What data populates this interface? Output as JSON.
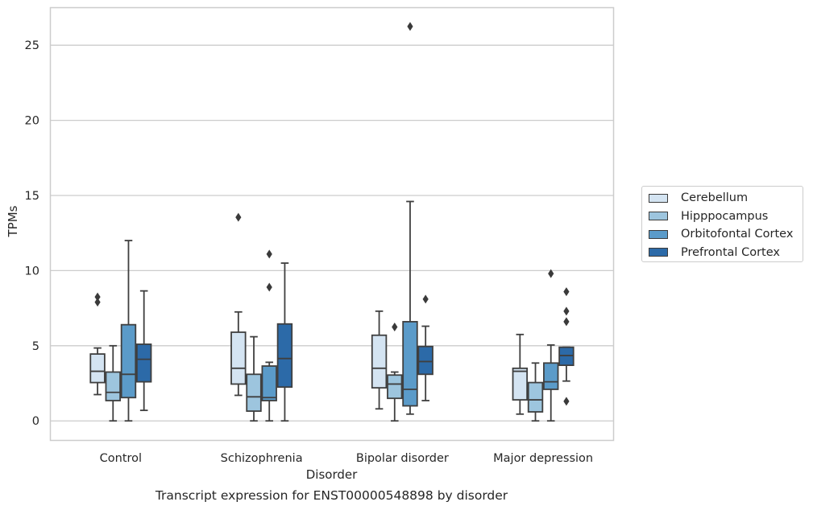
{
  "chart_data": {
    "type": "box",
    "xlabel": "Disorder",
    "ylabel": "TPMs",
    "caption": "Transcript expression for ENST00000548898 by disorder",
    "categories": [
      "Control",
      "Schizophrenia",
      "Bipolar disorder",
      "Major depression"
    ],
    "yticks": [
      0,
      5,
      10,
      15,
      20,
      25
    ],
    "ylim": [
      -1.3,
      27.5
    ],
    "grid": "horizontal",
    "legend_position": "right",
    "series": [
      {
        "name": "Cerebellum",
        "color": "#d4e4f2",
        "boxes": [
          {
            "whisker_low": 1.75,
            "q1": 2.55,
            "median": 3.3,
            "q3": 4.45,
            "whisker_high": 4.85,
            "outliers": [
              8.25,
              7.9
            ]
          },
          {
            "whisker_low": 1.7,
            "q1": 2.45,
            "median": 3.5,
            "q3": 5.9,
            "whisker_high": 7.25,
            "outliers": [
              13.55
            ]
          },
          {
            "whisker_low": 0.8,
            "q1": 2.2,
            "median": 3.5,
            "q3": 5.7,
            "whisker_high": 7.3,
            "outliers": []
          },
          {
            "whisker_low": 0.45,
            "q1": 1.4,
            "median": 3.3,
            "q3": 3.5,
            "whisker_high": 5.75,
            "outliers": []
          }
        ]
      },
      {
        "name": "Hipppocampus",
        "color": "#9dc5de",
        "boxes": [
          {
            "whisker_low": 0.0,
            "q1": 1.35,
            "median": 1.9,
            "q3": 3.25,
            "whisker_high": 5.0,
            "outliers": []
          },
          {
            "whisker_low": 0.0,
            "q1": 0.65,
            "median": 1.6,
            "q3": 3.1,
            "whisker_high": 5.6,
            "outliers": []
          },
          {
            "whisker_low": 0.0,
            "q1": 1.5,
            "median": 2.45,
            "q3": 3.05,
            "whisker_high": 3.25,
            "outliers": [
              6.25
            ]
          },
          {
            "whisker_low": 0.0,
            "q1": 0.6,
            "median": 1.4,
            "q3": 2.55,
            "whisker_high": 3.85,
            "outliers": []
          }
        ]
      },
      {
        "name": "Orbitofontal Cortex",
        "color": "#5b9bc9",
        "boxes": [
          {
            "whisker_low": 0.0,
            "q1": 1.55,
            "median": 3.1,
            "q3": 6.4,
            "whisker_high": 12.0,
            "outliers": []
          },
          {
            "whisker_low": 0.0,
            "q1": 1.35,
            "median": 1.55,
            "q3": 3.65,
            "whisker_high": 3.9,
            "outliers": [
              11.1,
              8.9
            ]
          },
          {
            "whisker_low": 0.45,
            "q1": 1.0,
            "median": 2.1,
            "q3": 6.6,
            "whisker_high": 14.6,
            "outliers": [
              26.25
            ]
          },
          {
            "whisker_low": 0.0,
            "q1": 2.1,
            "median": 2.6,
            "q3": 3.85,
            "whisker_high": 5.05,
            "outliers": [
              9.8
            ]
          }
        ]
      },
      {
        "name": "Prefrontal Cortex",
        "color": "#2c6aa8",
        "boxes": [
          {
            "whisker_low": 0.7,
            "q1": 2.6,
            "median": 4.1,
            "q3": 5.1,
            "whisker_high": 8.65,
            "outliers": []
          },
          {
            "whisker_low": 0.0,
            "q1": 2.25,
            "median": 4.15,
            "q3": 6.45,
            "whisker_high": 10.5,
            "outliers": []
          },
          {
            "whisker_low": 1.35,
            "q1": 3.1,
            "median": 3.95,
            "q3": 4.95,
            "whisker_high": 6.3,
            "outliers": [
              8.1
            ]
          },
          {
            "whisker_low": 2.65,
            "q1": 3.7,
            "median": 4.35,
            "q3": 4.9,
            "whisker_high": 4.9,
            "outliers": [
              8.6,
              7.3,
              6.6,
              1.3
            ]
          }
        ]
      }
    ]
  }
}
